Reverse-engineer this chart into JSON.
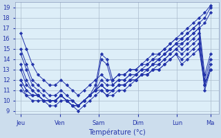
{
  "xlabel": "Température (°c)",
  "bg_color": "#ccdded",
  "plot_bg_color": "#ddeef8",
  "line_color": "#2233aa",
  "grid_color": "#aabbcc",
  "yticks": [
    9,
    10,
    11,
    12,
    13,
    14,
    15,
    16,
    17,
    18,
    19
  ],
  "ylim": [
    8.7,
    19.5
  ],
  "xlim": [
    0,
    250
  ],
  "day_labels": [
    "Jeu",
    "Ven",
    "Sam",
    "Dim",
    "Lun",
    "Ma"
  ],
  "day_positions": [
    7,
    55,
    103,
    151,
    199,
    240
  ],
  "series": [
    [
      16.5,
      15.0,
      13.5,
      12.5,
      12.0,
      11.5,
      11.5,
      12.0,
      11.5,
      11.0,
      10.5,
      11.0,
      11.5,
      12.0,
      12.5,
      12.0,
      12.0,
      12.5,
      12.5,
      13.0,
      13.0,
      13.5,
      14.0,
      14.5,
      14.5,
      15.0,
      15.5,
      16.0,
      16.5,
      17.0,
      17.5,
      18.0,
      18.5,
      19.2
    ],
    [
      15.0,
      13.5,
      12.0,
      11.5,
      11.0,
      10.5,
      10.5,
      11.0,
      10.5,
      10.0,
      9.5,
      10.0,
      10.5,
      11.0,
      11.5,
      11.0,
      11.0,
      11.5,
      11.5,
      12.0,
      12.5,
      13.0,
      13.5,
      14.0,
      14.0,
      14.5,
      15.0,
      15.5,
      16.0,
      16.5,
      17.0,
      17.5,
      18.0,
      19.0
    ],
    [
      14.5,
      13.0,
      11.5,
      11.0,
      10.5,
      10.0,
      10.0,
      10.5,
      10.0,
      9.5,
      9.0,
      9.5,
      10.0,
      10.5,
      11.0,
      10.5,
      10.5,
      11.0,
      11.0,
      11.5,
      12.0,
      12.5,
      13.0,
      13.5,
      13.5,
      14.0,
      14.5,
      15.0,
      15.5,
      16.0,
      16.5,
      17.0,
      17.5,
      18.5
    ],
    [
      13.5,
      12.0,
      11.0,
      10.5,
      10.0,
      10.0,
      10.0,
      10.5,
      10.0,
      9.5,
      9.5,
      10.0,
      10.5,
      11.5,
      14.5,
      14.0,
      12.0,
      12.5,
      12.5,
      13.0,
      13.0,
      13.5,
      13.5,
      14.0,
      14.5,
      15.0,
      15.5,
      16.0,
      16.0,
      16.5,
      17.0,
      17.5,
      12.5,
      14.5
    ],
    [
      13.0,
      11.5,
      11.0,
      10.5,
      10.0,
      10.0,
      10.0,
      10.5,
      10.0,
      9.5,
      9.5,
      10.0,
      10.5,
      11.0,
      14.0,
      13.5,
      11.5,
      12.0,
      12.0,
      12.5,
      12.5,
      13.0,
      13.0,
      13.5,
      14.0,
      14.5,
      15.0,
      15.5,
      15.5,
      16.0,
      16.5,
      17.0,
      12.0,
      14.0
    ],
    [
      12.0,
      11.0,
      10.5,
      10.5,
      10.0,
      10.0,
      10.0,
      10.5,
      10.0,
      9.5,
      9.5,
      10.0,
      10.5,
      11.0,
      12.0,
      11.5,
      11.5,
      12.0,
      12.0,
      12.5,
      12.5,
      13.0,
      13.0,
      13.5,
      14.0,
      14.5,
      15.0,
      15.5,
      15.0,
      15.5,
      16.0,
      16.5,
      11.5,
      13.5
    ],
    [
      12.0,
      11.0,
      10.5,
      10.5,
      10.0,
      10.0,
      10.0,
      10.5,
      10.0,
      9.5,
      9.5,
      10.0,
      10.5,
      11.0,
      11.5,
      11.0,
      11.0,
      11.5,
      11.5,
      12.0,
      12.0,
      12.5,
      12.5,
      13.0,
      13.5,
      14.0,
      14.5,
      15.0,
      14.5,
      15.0,
      15.5,
      16.0,
      11.0,
      13.0
    ],
    [
      11.5,
      10.5,
      10.5,
      10.5,
      10.0,
      10.0,
      10.0,
      10.5,
      10.0,
      10.0,
      9.5,
      10.0,
      10.5,
      11.0,
      11.5,
      11.0,
      11.0,
      11.5,
      11.5,
      12.0,
      12.0,
      12.5,
      12.5,
      13.0,
      13.0,
      13.5,
      14.0,
      14.5,
      14.0,
      14.5,
      15.0,
      15.5,
      11.5,
      13.0
    ],
    [
      11.0,
      10.5,
      10.0,
      10.0,
      10.0,
      9.5,
      9.5,
      10.0,
      10.0,
      10.0,
      9.5,
      10.0,
      10.5,
      11.0,
      11.0,
      10.5,
      11.0,
      11.5,
      11.5,
      12.0,
      12.0,
      12.5,
      12.5,
      13.0,
      13.0,
      13.5,
      14.0,
      14.5,
      13.5,
      14.0,
      14.5,
      15.0,
      11.5,
      13.0
    ]
  ]
}
